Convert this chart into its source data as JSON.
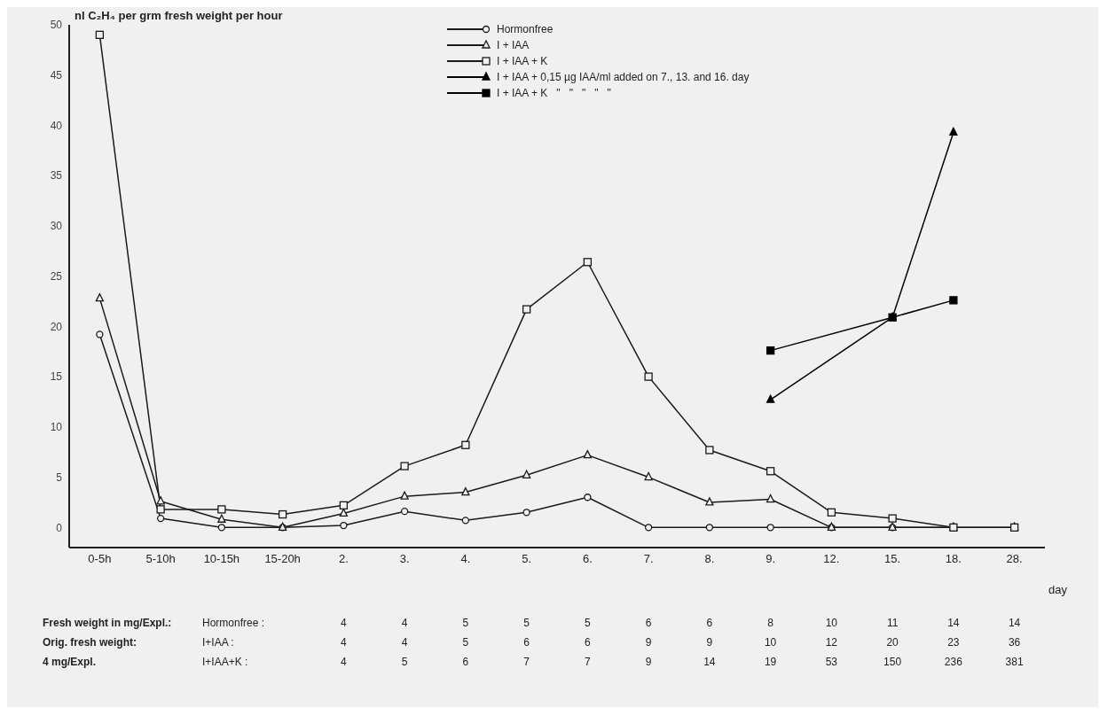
{
  "chart_data": {
    "type": "line",
    "ylabel": "nl C₂H₄ per grm fresh weight per hour",
    "xlabel": "day",
    "categories": [
      "0-5h",
      "5-10h",
      "10-15h",
      "15-20h",
      "2.",
      "3.",
      "4.",
      "5.",
      "6.",
      "7.",
      "8.",
      "9.",
      "12.",
      "15.",
      "18.",
      "28."
    ],
    "series": [
      {
        "name": "Hormonfree",
        "color": "#1a1a1a",
        "marker": "circle",
        "values": [
          19.2,
          0.9,
          0,
          0,
          0.2,
          1.6,
          0.7,
          1.5,
          3.0,
          0,
          0,
          0,
          0,
          0,
          0,
          null
        ]
      },
      {
        "name": "I + IAA",
        "color": "#1a1a1a",
        "marker": "triangle",
        "values": [
          22.8,
          2.6,
          0.8,
          0,
          1.4,
          3.1,
          3.5,
          5.2,
          7.2,
          5.0,
          2.5,
          2.8,
          0,
          0,
          0,
          0
        ]
      },
      {
        "name": "I + IAA + K",
        "color": "#1a1a1a",
        "marker": "square",
        "values": [
          49,
          1.8,
          1.8,
          1.3,
          2.2,
          6.1,
          8.2,
          21.7,
          26.4,
          15.0,
          7.7,
          5.6,
          1.5,
          0.9,
          0,
          0
        ]
      },
      {
        "name": "I + IAA + 0,15 µg IAA/ml added on 7., 13. and 16. day",
        "color": "#000000",
        "marker": "triangle",
        "values": [
          null,
          null,
          null,
          null,
          null,
          null,
          null,
          null,
          null,
          null,
          null,
          12.7,
          null,
          20.9,
          39.3,
          null
        ]
      },
      {
        "name": "I + IAA + K   \"   \"   \"   \"   \"",
        "color": "#000000",
        "marker": "square",
        "values": [
          null,
          null,
          null,
          null,
          null,
          null,
          null,
          null,
          null,
          null,
          null,
          17.6,
          null,
          20.9,
          22.6,
          null
        ]
      }
    ],
    "ylim": [
      -2,
      50
    ],
    "yticks": [
      0,
      5,
      10,
      15,
      20,
      25,
      30,
      35,
      40,
      45,
      50
    ],
    "grid": false,
    "legend": "top",
    "annotations": [
      "Fresh weight in mg/Expl.:",
      "Hormonfree :",
      "4 4 5 5 5 6 6 8 10 11 14 14",
      "Orig. fresh weight:",
      "I+IAA :",
      "4 4 5 6 6 9 9 10 12 20 23 36",
      "4 mg/Expl.",
      "I+IAA+K :",
      "4 5 6 7 7 9 14 19 53 150 236 381"
    ]
  }
}
